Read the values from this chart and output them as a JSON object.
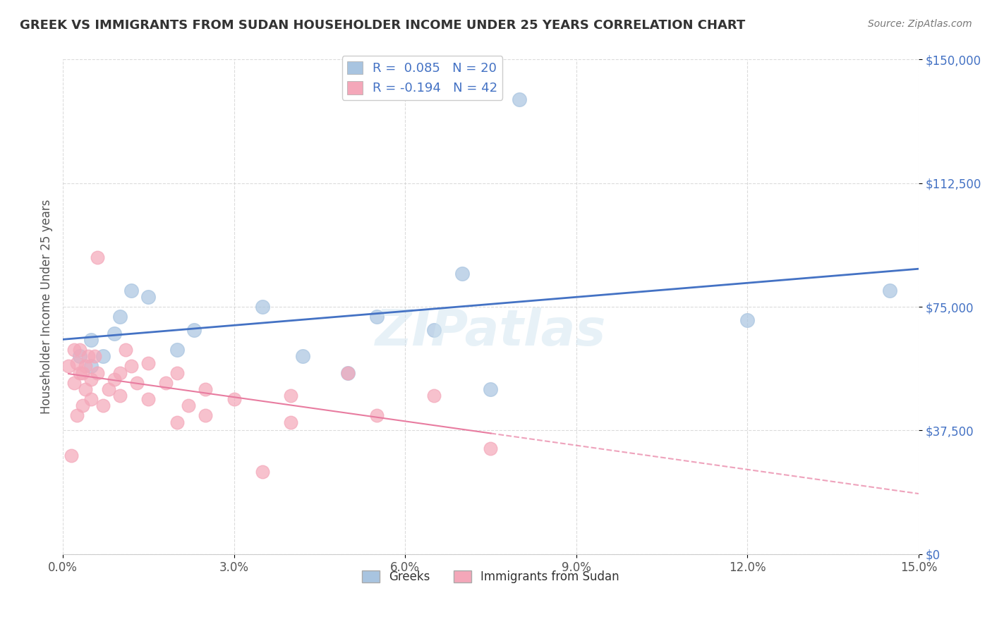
{
  "title": "GREEK VS IMMIGRANTS FROM SUDAN HOUSEHOLDER INCOME UNDER 25 YEARS CORRELATION CHART",
  "source": "Source: ZipAtlas.com",
  "xlabel_ticks": [
    "0.0%",
    "3.0%",
    "6.0%",
    "9.0%",
    "12.0%",
    "15.0%"
  ],
  "xlabel_tick_vals": [
    0.0,
    3.0,
    6.0,
    9.0,
    12.0,
    15.0
  ],
  "ylabel_ticks": [
    "$0",
    "$37,500",
    "$75,000",
    "$112,500",
    "$150,000"
  ],
  "ylabel_tick_vals": [
    0,
    37500,
    75000,
    112500,
    150000
  ],
  "ylabel_label": "Householder Income Under 25 years",
  "xlabel_label": "",
  "xlim": [
    0.0,
    15.0
  ],
  "ylim": [
    0,
    150000
  ],
  "watermark": "ZIPatlas",
  "legend_greek_R": "R =  0.085",
  "legend_greek_N": "N = 20",
  "legend_sudan_R": "R = -0.194",
  "legend_sudan_N": "N = 42",
  "greek_color": "#a8c4e0",
  "sudan_color": "#f4a7b9",
  "greek_line_color": "#4472c4",
  "sudan_line_color": "#f4a7b9",
  "greek_scatter": [
    [
      0.3,
      60000
    ],
    [
      0.5,
      65000
    ],
    [
      0.5,
      57000
    ],
    [
      0.7,
      60000
    ],
    [
      0.9,
      67000
    ],
    [
      1.0,
      72000
    ],
    [
      1.2,
      80000
    ],
    [
      1.5,
      78000
    ],
    [
      2.0,
      62000
    ],
    [
      2.3,
      68000
    ],
    [
      3.5,
      75000
    ],
    [
      4.2,
      60000
    ],
    [
      5.0,
      55000
    ],
    [
      5.5,
      72000
    ],
    [
      6.5,
      68000
    ],
    [
      7.0,
      85000
    ],
    [
      7.5,
      50000
    ],
    [
      8.0,
      138000
    ],
    [
      12.0,
      71000
    ],
    [
      14.5,
      80000
    ]
  ],
  "sudan_scatter": [
    [
      0.1,
      57000
    ],
    [
      0.15,
      30000
    ],
    [
      0.2,
      52000
    ],
    [
      0.2,
      62000
    ],
    [
      0.25,
      42000
    ],
    [
      0.25,
      58000
    ],
    [
      0.3,
      55000
    ],
    [
      0.3,
      62000
    ],
    [
      0.35,
      45000
    ],
    [
      0.35,
      55000
    ],
    [
      0.4,
      57000
    ],
    [
      0.4,
      50000
    ],
    [
      0.45,
      60000
    ],
    [
      0.5,
      47000
    ],
    [
      0.5,
      53000
    ],
    [
      0.55,
      60000
    ],
    [
      0.6,
      55000
    ],
    [
      0.7,
      45000
    ],
    [
      0.8,
      50000
    ],
    [
      0.9,
      53000
    ],
    [
      1.0,
      48000
    ],
    [
      1.0,
      55000
    ],
    [
      1.1,
      62000
    ],
    [
      1.2,
      57000
    ],
    [
      1.3,
      52000
    ],
    [
      1.5,
      58000
    ],
    [
      1.5,
      47000
    ],
    [
      1.8,
      52000
    ],
    [
      2.0,
      55000
    ],
    [
      2.0,
      40000
    ],
    [
      2.2,
      45000
    ],
    [
      2.5,
      42000
    ],
    [
      2.5,
      50000
    ],
    [
      3.0,
      47000
    ],
    [
      3.5,
      25000
    ],
    [
      4.0,
      40000
    ],
    [
      4.0,
      48000
    ],
    [
      5.0,
      55000
    ],
    [
      5.5,
      42000
    ],
    [
      6.5,
      48000
    ],
    [
      7.5,
      32000
    ],
    [
      0.6,
      90000
    ]
  ]
}
